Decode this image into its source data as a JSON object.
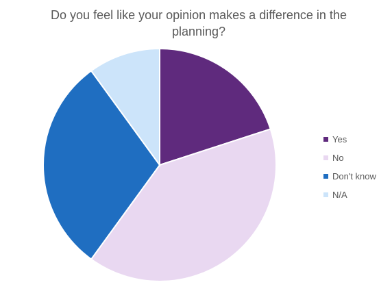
{
  "chart_data": {
    "type": "pie",
    "title": "Do you feel like your opinion makes a difference in the planning?",
    "categories": [
      "Yes",
      "No",
      "Don't know",
      "N/A"
    ],
    "values": [
      20,
      40,
      30,
      10
    ],
    "colors": [
      "#5f2a7d",
      "#e9d8f1",
      "#1f6ec1",
      "#cce4fa"
    ],
    "legend_position": "right",
    "start_angle_deg": 0,
    "direction": "clockwise"
  }
}
